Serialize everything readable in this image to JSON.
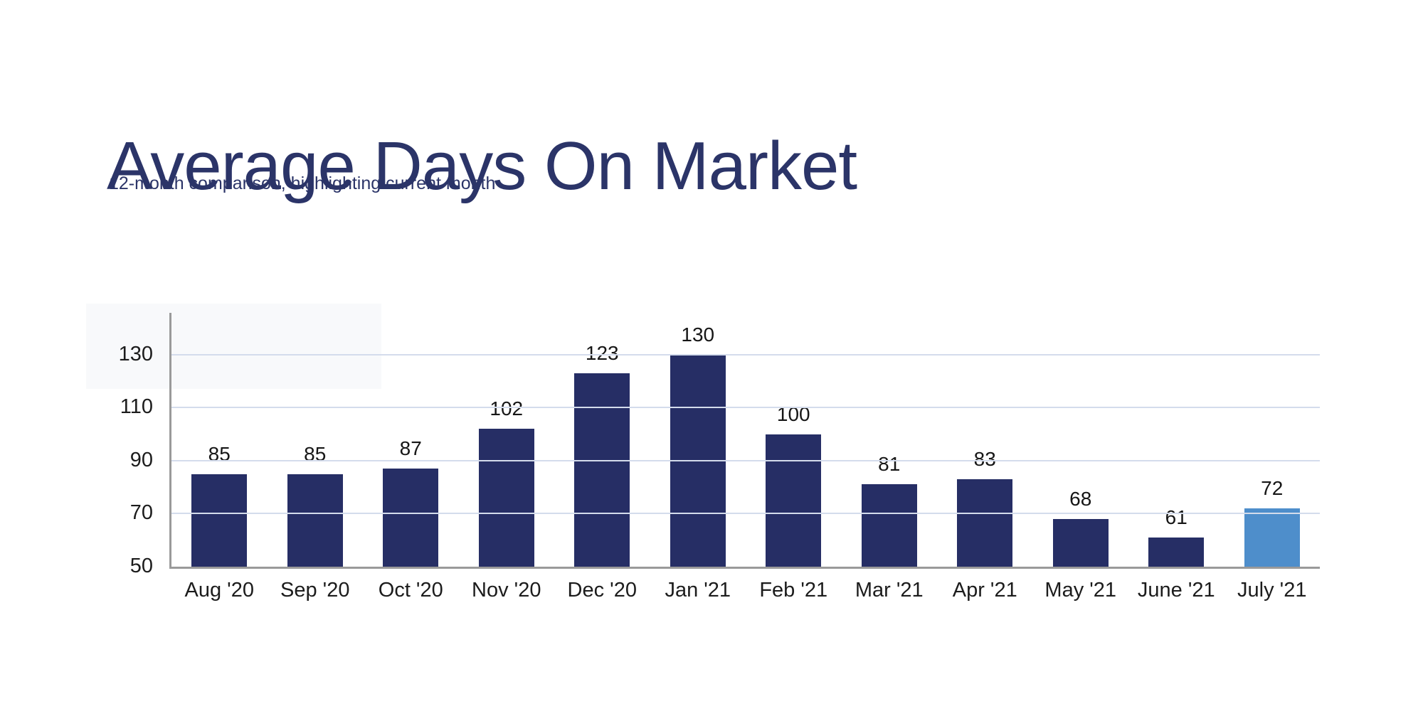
{
  "header": {
    "title": "Average Days On Market",
    "subtitle": "12-month comparison, highlighting current month"
  },
  "chart_data": {
    "type": "bar",
    "title": "Average Days On Market",
    "subtitle": "12-month comparison, highlighting current month",
    "categories": [
      "Aug '20",
      "Sep '20",
      "Oct '20",
      "Nov '20",
      "Dec '20",
      "Jan '21",
      "Feb '21",
      "Mar '21",
      "Apr '21",
      "May '21",
      "June '21",
      "July '21"
    ],
    "values": [
      85,
      85,
      87,
      102,
      123,
      130,
      100,
      81,
      83,
      68,
      61,
      72
    ],
    "highlight_index": 11,
    "highlight_note": "current month",
    "xlabel": "",
    "ylabel": "",
    "yticks": [
      50,
      70,
      90,
      110,
      130
    ],
    "ylim": [
      50,
      145.8
    ],
    "grid": true,
    "legend": false
  },
  "colors": {
    "bar": "#262e65",
    "bar_highlight": "#4e8ecb",
    "title_text": "#2b3468",
    "subtitle_text": "#2b3468",
    "tick_text": "#1c1c1c",
    "value_text": "#161616",
    "gridline": "#d4dcec",
    "axis": "#9a9a9a",
    "backdrop": "#f8f9fb",
    "background": "#ffffff"
  }
}
